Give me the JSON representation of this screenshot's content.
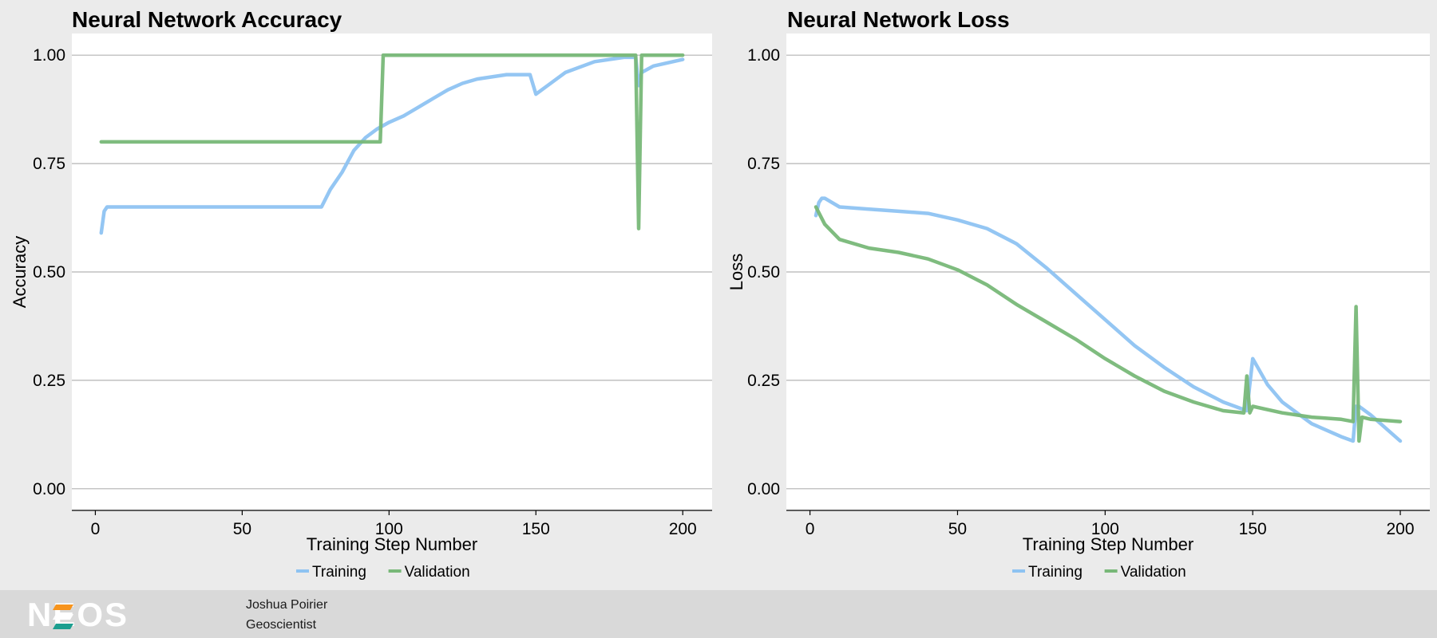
{
  "chart_data": [
    {
      "type": "line",
      "title": "Neural Network Accuracy",
      "xlabel": "Training Step Number",
      "ylabel": "Accuracy",
      "xlim": [
        -8,
        210
      ],
      "ylim": [
        -0.05,
        1.05
      ],
      "xticks": [
        0,
        50,
        100,
        150,
        200
      ],
      "xtick_labels": [
        "0",
        "50",
        "100",
        "150",
        "200"
      ],
      "yticks": [
        0,
        0.25,
        0.5,
        0.75,
        1
      ],
      "ytick_labels": [
        "0.00",
        "0.25",
        "0.50",
        "0.75",
        "1.00"
      ],
      "grid": "horizontal",
      "legend_position": "bottom",
      "series": [
        {
          "name": "Training",
          "color": "#8ec3f2",
          "x": [
            2,
            3,
            4,
            5,
            10,
            20,
            40,
            60,
            77,
            80,
            84,
            88,
            92,
            96,
            100,
            105,
            110,
            115,
            120,
            125,
            130,
            140,
            148,
            150,
            155,
            160,
            170,
            180,
            184,
            185,
            186,
            190,
            200
          ],
          "y": [
            0.59,
            0.64,
            0.65,
            0.65,
            0.65,
            0.65,
            0.65,
            0.65,
            0.65,
            0.69,
            0.73,
            0.78,
            0.81,
            0.83,
            0.845,
            0.86,
            0.88,
            0.9,
            0.92,
            0.935,
            0.945,
            0.955,
            0.955,
            0.91,
            0.935,
            0.96,
            0.985,
            0.995,
            0.995,
            0.93,
            0.96,
            0.975,
            0.99
          ]
        },
        {
          "name": "Validation",
          "color": "#78b878",
          "x": [
            2,
            97,
            98,
            184,
            185,
            186,
            200
          ],
          "y": [
            0.8,
            0.8,
            1.0,
            1.0,
            0.6,
            1.0,
            1.0
          ]
        }
      ]
    },
    {
      "type": "line",
      "title": "Neural Network Loss",
      "xlabel": "Training Step Number",
      "ylabel": "Loss",
      "xlim": [
        -8,
        210
      ],
      "ylim": [
        -0.05,
        1.05
      ],
      "xticks": [
        0,
        50,
        100,
        150,
        200
      ],
      "xtick_labels": [
        "0",
        "50",
        "100",
        "150",
        "200"
      ],
      "yticks": [
        0,
        0.25,
        0.5,
        0.75,
        1
      ],
      "ytick_labels": [
        "0.00",
        "0.25",
        "0.50",
        "0.75",
        "1.00"
      ],
      "grid": "horizontal",
      "legend_position": "bottom",
      "series": [
        {
          "name": "Training",
          "color": "#8ec3f2",
          "x": [
            2,
            3,
            4,
            5,
            10,
            20,
            30,
            40,
            50,
            60,
            70,
            80,
            90,
            100,
            110,
            120,
            130,
            140,
            148,
            150,
            155,
            160,
            170,
            180,
            184,
            185,
            186,
            190,
            200
          ],
          "y": [
            0.63,
            0.66,
            0.67,
            0.67,
            0.65,
            0.645,
            0.64,
            0.635,
            0.62,
            0.6,
            0.565,
            0.51,
            0.45,
            0.39,
            0.33,
            0.28,
            0.235,
            0.2,
            0.18,
            0.3,
            0.24,
            0.2,
            0.15,
            0.12,
            0.11,
            0.19,
            0.19,
            0.17,
            0.11
          ]
        },
        {
          "name": "Validation",
          "color": "#78b878",
          "x": [
            2,
            5,
            10,
            20,
            30,
            40,
            50,
            60,
            70,
            80,
            90,
            100,
            110,
            120,
            130,
            140,
            147,
            148,
            149,
            150,
            160,
            170,
            180,
            184,
            185,
            186,
            187,
            190,
            200
          ],
          "y": [
            0.65,
            0.61,
            0.575,
            0.555,
            0.545,
            0.53,
            0.505,
            0.47,
            0.425,
            0.385,
            0.345,
            0.3,
            0.26,
            0.225,
            0.2,
            0.18,
            0.175,
            0.26,
            0.175,
            0.19,
            0.175,
            0.165,
            0.16,
            0.155,
            0.42,
            0.11,
            0.165,
            0.16,
            0.155
          ]
        }
      ]
    }
  ],
  "footer": {
    "logo_text": "NEOS",
    "author_name": "Joshua Poirier",
    "author_title": "Geoscientist"
  }
}
